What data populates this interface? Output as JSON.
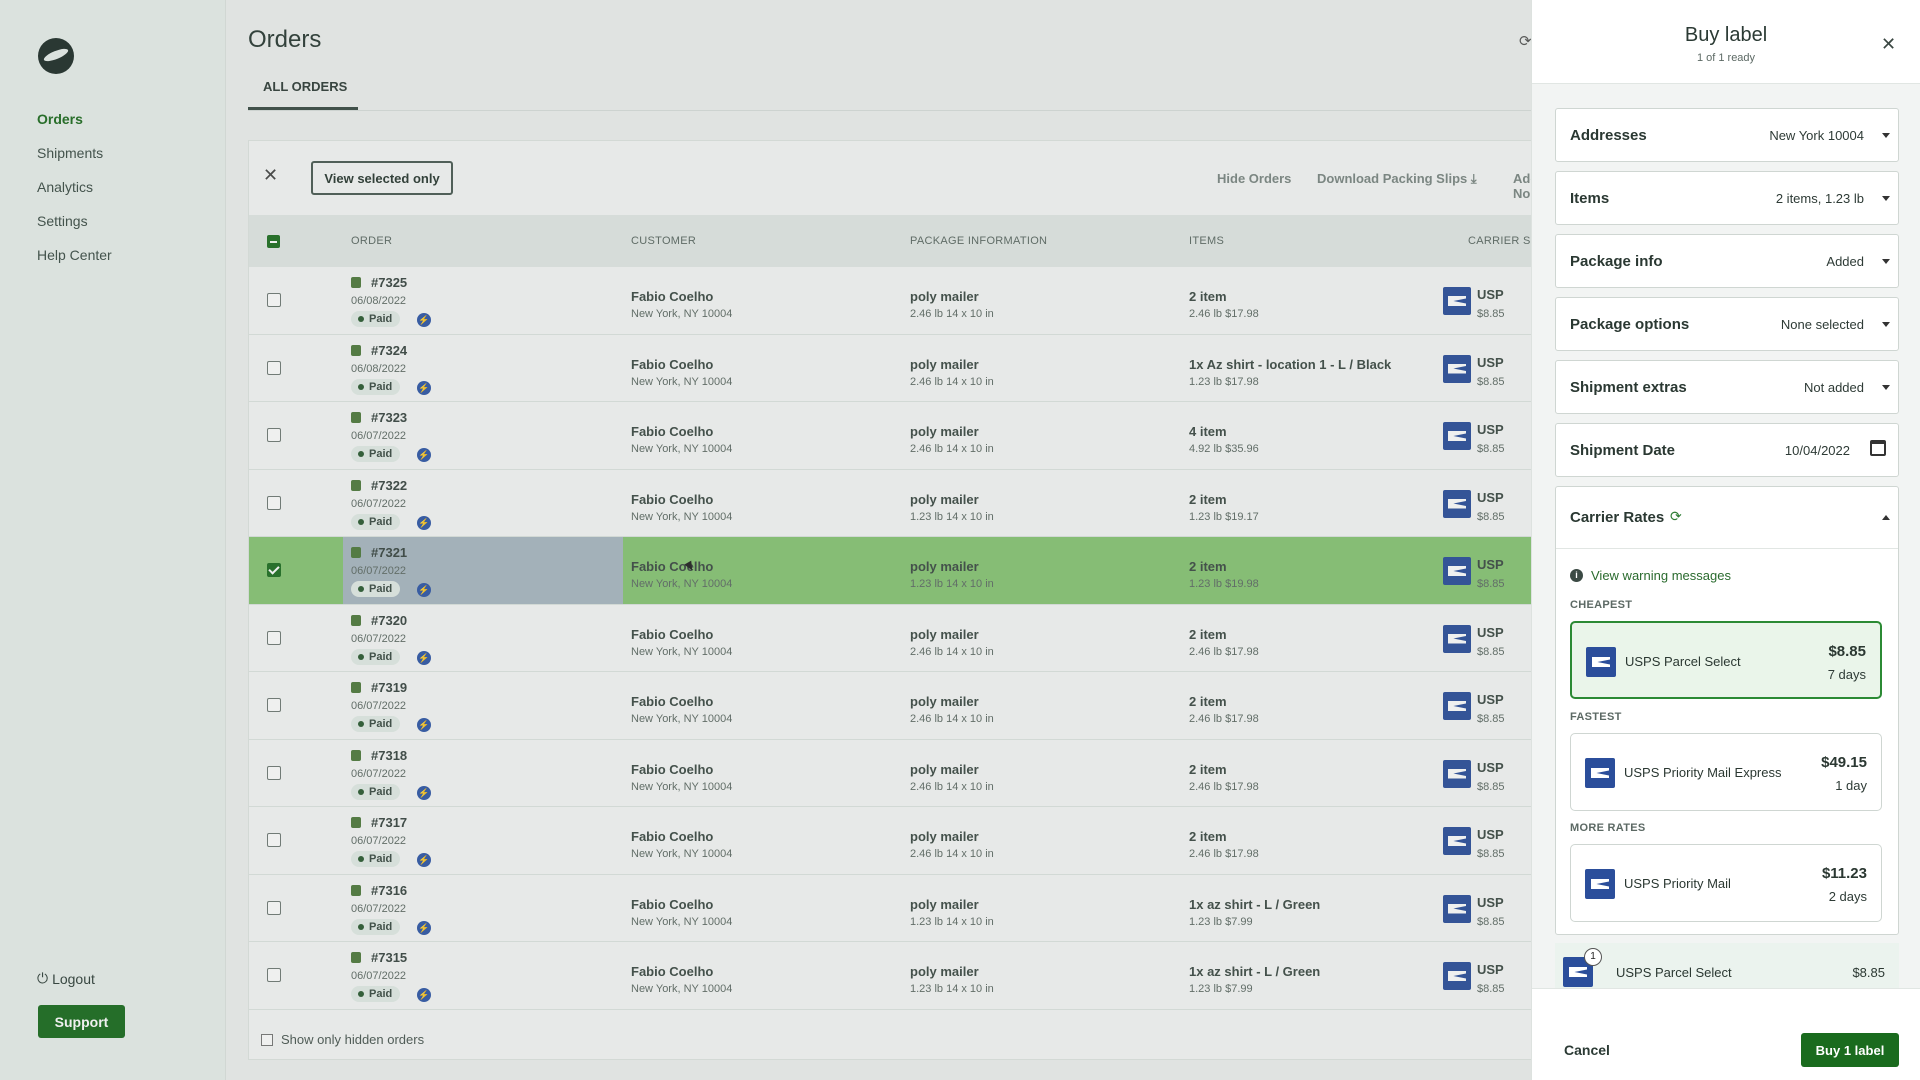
{
  "sidebar": {
    "items": [
      {
        "label": "Orders",
        "active": true
      },
      {
        "label": "Shipments"
      },
      {
        "label": "Analytics"
      },
      {
        "label": "Settings"
      },
      {
        "label": "Help Center"
      }
    ],
    "logout": "Logout",
    "support": "Support"
  },
  "main": {
    "title": "Orders",
    "tab": "ALL ORDERS",
    "toolbar": {
      "view_selected": "View selected only",
      "hide_orders": "Hide Orders",
      "download_slips": "Download Packing Slips",
      "add_note": "Add No"
    },
    "columns": [
      "ORDER",
      "CUSTOMER",
      "PACKAGE INFORMATION",
      "ITEMS",
      "CARRIER SE"
    ],
    "rows": [
      {
        "order": "#7325",
        "date": "06/08/2022",
        "status": "Paid",
        "customer": "Fabio Coelho",
        "address": "New York, NY 10004",
        "pkg": "poly mailer",
        "pkg_dims": "2.46 lb 14 x 10 in",
        "items": "2 item",
        "items_sub": "2.46 lb  $17.98",
        "carrier": "USP",
        "carrier_price": "$8.85",
        "selected": false
      },
      {
        "order": "#7324",
        "date": "06/08/2022",
        "status": "Paid",
        "customer": "Fabio Coelho",
        "address": "New York, NY 10004",
        "pkg": "poly mailer",
        "pkg_dims": "2.46 lb 14 x 10 in",
        "items": "1x Az shirt - location 1 - L / Black",
        "items_sub": "1.23 lb  $17.98",
        "carrier": "USP",
        "carrier_price": "$8.85",
        "selected": false
      },
      {
        "order": "#7323",
        "date": "06/07/2022",
        "status": "Paid",
        "customer": "Fabio Coelho",
        "address": "New York, NY 10004",
        "pkg": "poly mailer",
        "pkg_dims": "2.46 lb 14 x 10 in",
        "items": "4 item",
        "items_sub": "4.92 lb  $35.96",
        "carrier": "USP",
        "carrier_price": "$8.85",
        "selected": false
      },
      {
        "order": "#7322",
        "date": "06/07/2022",
        "status": "Paid",
        "customer": "Fabio Coelho",
        "address": "New York, NY 10004",
        "pkg": "poly mailer",
        "pkg_dims": "1.23 lb 14 x 10 in",
        "items": "2 item",
        "items_sub": "1.23 lb  $19.17",
        "carrier": "USP",
        "carrier_price": "$8.85",
        "selected": false
      },
      {
        "order": "#7321",
        "date": "06/07/2022",
        "status": "Paid",
        "customer": "Fabio Coelho",
        "address": "New York, NY 10004",
        "pkg": "poly mailer",
        "pkg_dims": "1.23 lb 14 x 10 in",
        "items": "2 item",
        "items_sub": "1.23 lb  $19.98",
        "carrier": "USP",
        "carrier_price": "$8.85",
        "selected": true
      },
      {
        "order": "#7320",
        "date": "06/07/2022",
        "status": "Paid",
        "customer": "Fabio Coelho",
        "address": "New York, NY 10004",
        "pkg": "poly mailer",
        "pkg_dims": "2.46 lb 14 x 10 in",
        "items": "2 item",
        "items_sub": "2.46 lb  $17.98",
        "carrier": "USP",
        "carrier_price": "$8.85",
        "selected": false
      },
      {
        "order": "#7319",
        "date": "06/07/2022",
        "status": "Paid",
        "customer": "Fabio Coelho",
        "address": "New York, NY 10004",
        "pkg": "poly mailer",
        "pkg_dims": "2.46 lb 14 x 10 in",
        "items": "2 item",
        "items_sub": "2.46 lb  $17.98",
        "carrier": "USP",
        "carrier_price": "$8.85",
        "selected": false
      },
      {
        "order": "#7318",
        "date": "06/07/2022",
        "status": "Paid",
        "customer": "Fabio Coelho",
        "address": "New York, NY 10004",
        "pkg": "poly mailer",
        "pkg_dims": "2.46 lb 14 x 10 in",
        "items": "2 item",
        "items_sub": "2.46 lb  $17.98",
        "carrier": "USP",
        "carrier_price": "$8.85",
        "selected": false
      },
      {
        "order": "#7317",
        "date": "06/07/2022",
        "status": "Paid",
        "customer": "Fabio Coelho",
        "address": "New York, NY 10004",
        "pkg": "poly mailer",
        "pkg_dims": "2.46 lb 14 x 10 in",
        "items": "2 item",
        "items_sub": "2.46 lb  $17.98",
        "carrier": "USP",
        "carrier_price": "$8.85",
        "selected": false
      },
      {
        "order": "#7316",
        "date": "06/07/2022",
        "status": "Paid",
        "customer": "Fabio Coelho",
        "address": "New York, NY 10004",
        "pkg": "poly mailer",
        "pkg_dims": "1.23 lb 14 x 10 in",
        "items": "1x az shirt - L / Green",
        "items_sub": "1.23 lb  $7.99",
        "carrier": "USP",
        "carrier_price": "$8.85",
        "selected": false
      },
      {
        "order": "#7315",
        "date": "06/07/2022",
        "status": "Paid",
        "customer": "Fabio Coelho",
        "address": "New York, NY 10004",
        "pkg": "poly mailer",
        "pkg_dims": "1.23 lb 14 x 10 in",
        "items": "1x az shirt - L / Green",
        "items_sub": "1.23 lb  $7.99",
        "carrier": "USP",
        "carrier_price": "$8.85",
        "selected": false
      }
    ],
    "footer_option": "Show only hidden orders"
  },
  "drawer": {
    "title": "Buy label",
    "subtitle": "1 of 1 ready",
    "sections": [
      {
        "label": "Addresses",
        "value": "New York 10004"
      },
      {
        "label": "Items",
        "value": "2 items, 1.23 lb"
      },
      {
        "label": "Package info",
        "value": "Added"
      },
      {
        "label": "Package options",
        "value": "None selected"
      },
      {
        "label": "Shipment extras",
        "value": "Not added"
      },
      {
        "label": "Shipment Date",
        "value": "10/04/2022"
      }
    ],
    "carrier_rates": {
      "label": "Carrier Rates",
      "warning_link": "View warning messages",
      "groups": {
        "cheapest": "CHEAPEST",
        "fastest": "FASTEST",
        "more": "MORE RATES"
      },
      "rates": [
        {
          "name": "USPS Parcel Select",
          "price": "$8.85",
          "days": "7 days"
        },
        {
          "name": "USPS Priority Mail Express",
          "price": "$49.15",
          "days": "1 day"
        },
        {
          "name": "USPS Priority Mail",
          "price": "$11.23",
          "days": "2 days"
        }
      ]
    },
    "selected_summary": {
      "count": "1",
      "name": "USPS Parcel Select",
      "price": "$8.85"
    },
    "cancel": "Cancel",
    "buy": "Buy 1 label"
  },
  "colors": {
    "accent": "#1a6b1e",
    "selected_row": "#88c575",
    "usps_blue": "#2b4e9b"
  }
}
